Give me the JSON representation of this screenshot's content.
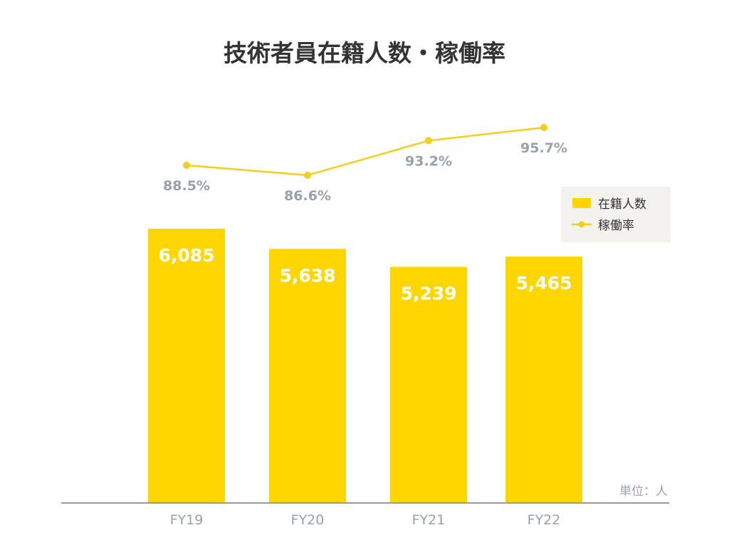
{
  "chart_data": {
    "type": "bar",
    "title": "技術者員在籍人数・稼働率",
    "categories": [
      "FY19",
      "FY20",
      "FY21",
      "FY22"
    ],
    "series": [
      {
        "name": "在籍人数",
        "type": "bar",
        "values": [
          6085,
          5638,
          5239,
          5465
        ],
        "labels": [
          "6,085",
          "5,638",
          "5,239",
          "5,465"
        ]
      },
      {
        "name": "稼働率",
        "type": "line",
        "values": [
          88.5,
          86.6,
          93.2,
          95.7
        ],
        "labels": [
          "88.5%",
          "86.6%",
          "93.2%",
          "95.7%"
        ]
      }
    ],
    "unit_note": "単位：人",
    "legend_position": "right",
    "bar_ylim": [
      0,
      7000
    ],
    "line_ylim": [
      70,
      100
    ],
    "grid": false
  },
  "colors": {
    "bar": "#FFD600",
    "line": "#F2CF1C",
    "axis": "#9a9a9a",
    "legend_bg": "#f3f2ee"
  }
}
